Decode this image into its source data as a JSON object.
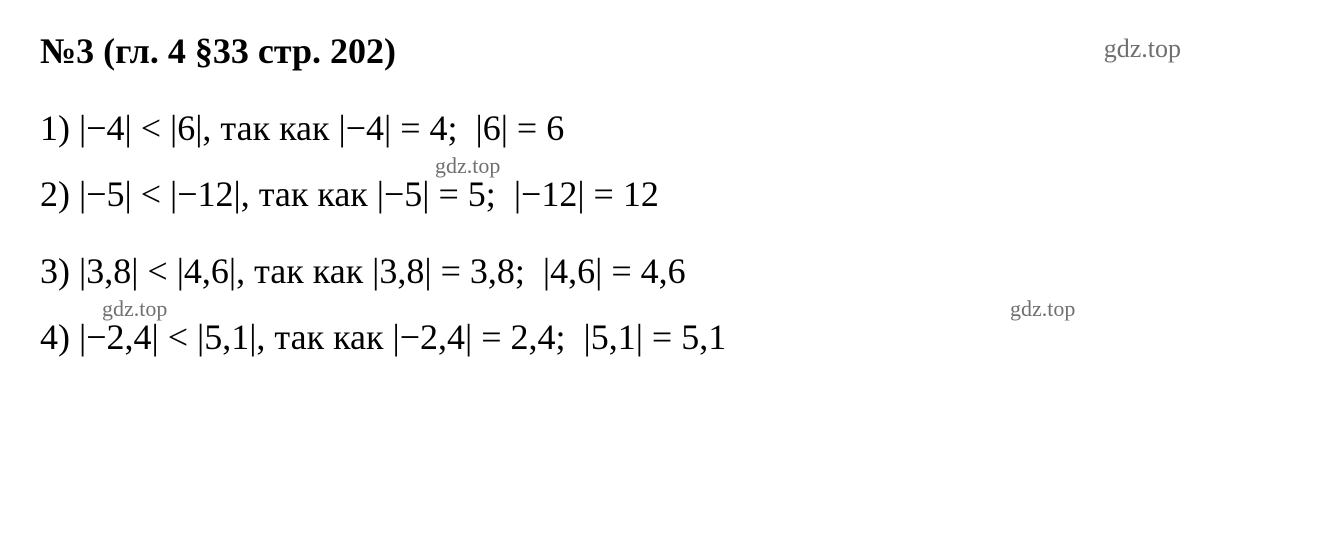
{
  "title": "№3 (гл. 4 §33 стр. 202)",
  "watermark": "gdz.top",
  "colors": {
    "text": "#000000",
    "watermark": "#707070",
    "background": "#ffffff"
  },
  "typography": {
    "title_fontsize": 36,
    "title_weight": "bold",
    "body_fontsize": 36,
    "watermark_fontsize_top": 26,
    "watermark_fontsize_inline": 22,
    "font_family": "Times New Roman"
  },
  "lines": [
    {
      "num": "1)",
      "text": "|−4| < |6|, так как |−4| = 4;  |6| = 6"
    },
    {
      "num": "2)",
      "text": "|−5| < |−12|, так как |−5| = 5;  |−12| = 12"
    },
    {
      "num": "3)",
      "text": "|3,8| < |4,6|, так как |3,8| = 3,8;  |4,6| = 4,6"
    },
    {
      "num": "4)",
      "text": "|−2,4| < |5,1|, так как |−2,4| = 2,4;  |5,1| = 5,1"
    }
  ]
}
